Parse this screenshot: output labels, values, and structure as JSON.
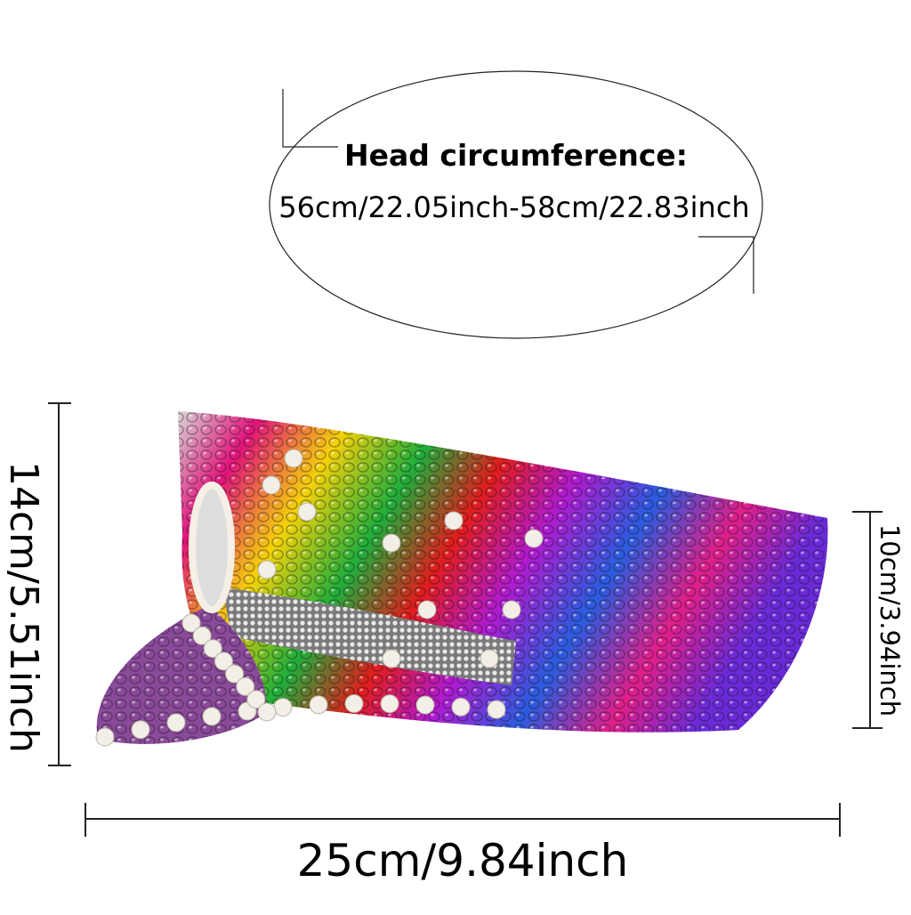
{
  "circumference": {
    "title": "Head circumference:",
    "range": "56cm/22.05inch-58cm/22.83inch"
  },
  "dimensions": {
    "height": "14cm/5.51inch",
    "crown_height": "10cm/3.94inch",
    "length": "25cm/9.84inch"
  }
}
